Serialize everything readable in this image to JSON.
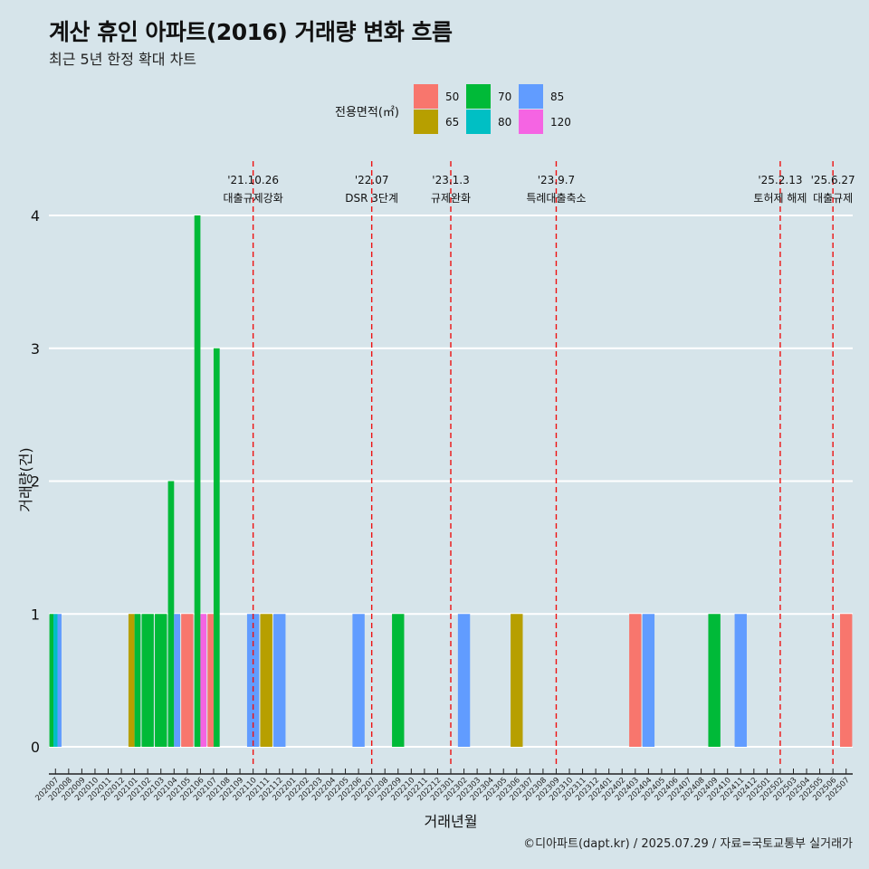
{
  "title": "계산 휴인 아파트(2016) 거래량 변화 흐름",
  "subtitle": "최근 5년 한정 확대 차트",
  "caption": "©디아파트(dapt.kr) / 2025.07.29 / 자료=국토교통부 실거래가",
  "chart_data": {
    "type": "bar",
    "xlabel": "거래년월",
    "ylabel": "거래량(건)",
    "ylim": [
      0,
      4
    ],
    "yticks": [
      0,
      1,
      2,
      3,
      4
    ],
    "grid": true,
    "legend": {
      "title": "전용면적(㎡)",
      "placement": "top",
      "entries": [
        {
          "label": "50",
          "color": "#F8766D"
        },
        {
          "label": "65",
          "color": "#B79F00"
        },
        {
          "label": "70",
          "color": "#00BA38"
        },
        {
          "label": "80",
          "color": "#00BFC4"
        },
        {
          "label": "85",
          "color": "#619CFF"
        },
        {
          "label": "120",
          "color": "#F564E3"
        }
      ]
    },
    "categories": [
      "202007",
      "202008",
      "202009",
      "202010",
      "202011",
      "202012",
      "202101",
      "202102",
      "202103",
      "202104",
      "202105",
      "202106",
      "202107",
      "202108",
      "202109",
      "202110",
      "202111",
      "202112",
      "202201",
      "202202",
      "202203",
      "202204",
      "202205",
      "202206",
      "202207",
      "202208",
      "202209",
      "202210",
      "202211",
      "202212",
      "202301",
      "202302",
      "202303",
      "202304",
      "202305",
      "202306",
      "202307",
      "202308",
      "202309",
      "202310",
      "202311",
      "202312",
      "202401",
      "202402",
      "202403",
      "202404",
      "202405",
      "202406",
      "202407",
      "202408",
      "202409",
      "202410",
      "202411",
      "202412",
      "202501",
      "202502",
      "202503",
      "202504",
      "202505",
      "202506",
      "202507"
    ],
    "bars": [
      {
        "month": "202007",
        "segments": [
          {
            "area": "70",
            "value": 1
          },
          {
            "area": "80",
            "value": 1
          },
          {
            "area": "85",
            "value": 1
          }
        ]
      },
      {
        "month": "202101",
        "segments": [
          {
            "area": "65",
            "value": 1
          },
          {
            "area": "70",
            "value": 1
          }
        ]
      },
      {
        "month": "202102",
        "segments": [
          {
            "area": "70",
            "value": 1
          }
        ]
      },
      {
        "month": "202103",
        "segments": [
          {
            "area": "70",
            "value": 1
          }
        ]
      },
      {
        "month": "202104",
        "segments": [
          {
            "area": "70",
            "value": 2
          },
          {
            "area": "85",
            "value": 1
          }
        ]
      },
      {
        "month": "202105",
        "segments": [
          {
            "area": "50",
            "value": 1
          }
        ]
      },
      {
        "month": "202106",
        "segments": [
          {
            "area": "70",
            "value": 4
          },
          {
            "area": "120",
            "value": 1
          }
        ]
      },
      {
        "month": "202107",
        "segments": [
          {
            "area": "50",
            "value": 1
          },
          {
            "area": "70",
            "value": 3
          }
        ]
      },
      {
        "month": "202110",
        "segments": [
          {
            "area": "85",
            "value": 1
          }
        ]
      },
      {
        "month": "202111",
        "segments": [
          {
            "area": "65",
            "value": 1
          }
        ]
      },
      {
        "month": "202112",
        "segments": [
          {
            "area": "85",
            "value": 1
          }
        ]
      },
      {
        "month": "202206",
        "segments": [
          {
            "area": "85",
            "value": 1
          }
        ]
      },
      {
        "month": "202209",
        "segments": [
          {
            "area": "70",
            "value": 1
          }
        ]
      },
      {
        "month": "202302",
        "segments": [
          {
            "area": "85",
            "value": 1
          }
        ]
      },
      {
        "month": "202306",
        "segments": [
          {
            "area": "65",
            "value": 1
          }
        ]
      },
      {
        "month": "202403",
        "segments": [
          {
            "area": "50",
            "value": 1
          }
        ]
      },
      {
        "month": "202404",
        "segments": [
          {
            "area": "85",
            "value": 1
          }
        ]
      },
      {
        "month": "202409",
        "segments": [
          {
            "area": "70",
            "value": 1
          }
        ]
      },
      {
        "month": "202411",
        "segments": [
          {
            "area": "85",
            "value": 1
          }
        ]
      },
      {
        "month": "202507",
        "segments": [
          {
            "area": "50",
            "value": 1
          }
        ]
      }
    ],
    "annotations": [
      {
        "month": "202110",
        "date": "'21.10.26",
        "label": "대출규제강화"
      },
      {
        "month": "202207",
        "date": "'22.07",
        "label": "DSR 3단계"
      },
      {
        "month": "202301",
        "date": "'23.1.3",
        "label": "규제완화"
      },
      {
        "month": "202309",
        "date": "'23.9.7",
        "label": "특례대출축소"
      },
      {
        "month": "202502",
        "date": "'25.2.13",
        "label": "토허제 해제"
      },
      {
        "month": "202506",
        "date": "'25.6.27",
        "label": "대출규제"
      }
    ]
  }
}
